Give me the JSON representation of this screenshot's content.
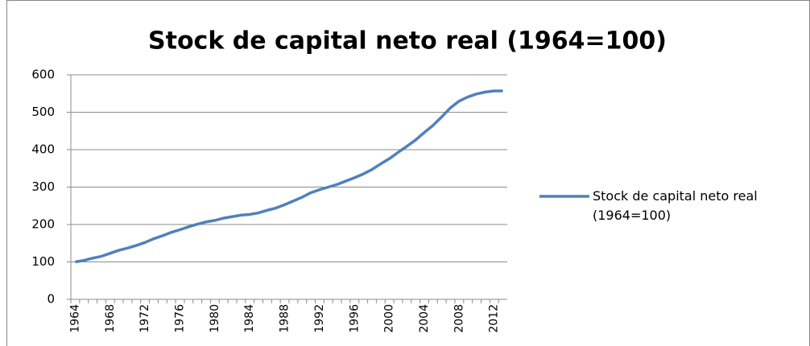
{
  "chart_data": {
    "type": "line",
    "title": "Stock de capital neto real (1964=100)",
    "categories": [
      "1964",
      null,
      null,
      null,
      "1968",
      null,
      null,
      null,
      "1972",
      null,
      null,
      null,
      "1976",
      null,
      null,
      null,
      "1980",
      null,
      null,
      null,
      "1984",
      null,
      null,
      null,
      "1988",
      null,
      null,
      null,
      "1992",
      null,
      null,
      null,
      "1996",
      null,
      null,
      null,
      "2000",
      null,
      null,
      null,
      "2004",
      null,
      null,
      null,
      "2008",
      null,
      null,
      null,
      "2012",
      null
    ],
    "series": [
      {
        "name": "Stock de capital neto real (1964=100)",
        "color": "#4f81bd",
        "values": [
          100,
          104,
          110,
          115,
          123,
          131,
          137,
          144,
          152,
          162,
          170,
          179,
          186,
          194,
          201,
          207,
          211,
          217,
          221,
          225,
          227,
          231,
          238,
          244,
          253,
          263,
          273,
          285,
          293,
          300,
          307,
          316,
          325,
          335,
          347,
          362,
          376,
          393,
          409,
          426,
          446,
          465,
          488,
          512,
          530,
          541,
          549,
          554,
          557,
          557
        ]
      }
    ],
    "ylim": [
      0,
      600
    ],
    "yticks": [
      0,
      100,
      200,
      300,
      400,
      500,
      600
    ],
    "grid": true,
    "legend": "right"
  }
}
